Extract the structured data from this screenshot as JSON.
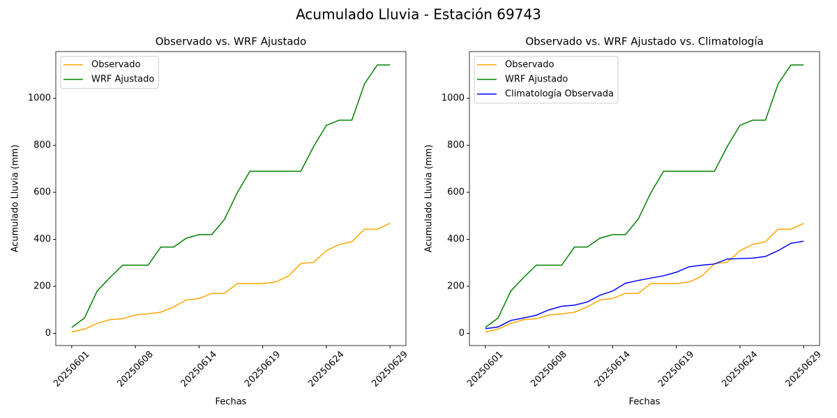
{
  "title": "Acumulado Lluvia - Estación 69743",
  "chart_data": [
    {
      "type": "line",
      "title": "Observado vs. WRF Ajustado",
      "x_label": "Fechas",
      "y_label": "Acumulado Lluvia (mm)",
      "categories": [
        "20250601",
        null,
        null,
        null,
        null,
        "20250608",
        null,
        null,
        null,
        null,
        "20250614",
        null,
        null,
        null,
        null,
        "20250619",
        null,
        null,
        null,
        null,
        "20250624",
        null,
        null,
        null,
        null,
        "20250629"
      ],
      "series": [
        {
          "name": "Observado",
          "color": "orange",
          "values": [
            5,
            18,
            42,
            58,
            62,
            78,
            83,
            90,
            112,
            142,
            148,
            170,
            170,
            212,
            212,
            212,
            218,
            243,
            297,
            302,
            352,
            378,
            390,
            443,
            443,
            468
          ]
        },
        {
          "name": "WRF Ajustado",
          "color": "green",
          "values": [
            25,
            65,
            180,
            237,
            290,
            290,
            290,
            367,
            367,
            405,
            420,
            420,
            485,
            598,
            690,
            690,
            690,
            690,
            690,
            795,
            885,
            907,
            907,
            1062,
            1142,
            1142
          ]
        }
      ],
      "ylim": [
        -52,
        1199
      ],
      "yticks": [
        0,
        200,
        400,
        600,
        800,
        1000
      ],
      "legend": "upper left",
      "grid": false
    },
    {
      "type": "line",
      "title": "Observado vs. WRF Ajustado vs. Climatología",
      "x_label": "Fechas",
      "y_label": "Acumulado Lluvia (mm)",
      "categories": [
        "20250601",
        null,
        null,
        null,
        null,
        "20250608",
        null,
        null,
        null,
        null,
        "20250614",
        null,
        null,
        null,
        null,
        "20250619",
        null,
        null,
        null,
        null,
        "20250624",
        null,
        null,
        null,
        null,
        "20250629"
      ],
      "series": [
        {
          "name": "Observado",
          "color": "orange",
          "values": [
            5,
            18,
            42,
            58,
            62,
            78,
            83,
            90,
            112,
            142,
            148,
            170,
            170,
            212,
            212,
            212,
            218,
            243,
            297,
            302,
            352,
            378,
            390,
            443,
            443,
            468
          ]
        },
        {
          "name": "WRF Ajustado",
          "color": "green",
          "values": [
            25,
            65,
            180,
            237,
            290,
            290,
            290,
            367,
            367,
            405,
            420,
            420,
            485,
            598,
            690,
            690,
            690,
            690,
            690,
            795,
            885,
            907,
            907,
            1062,
            1142,
            1142
          ]
        },
        {
          "name": "Climatología Observada",
          "color": "blue",
          "values": [
            20,
            27,
            55,
            65,
            77,
            100,
            115,
            120,
            133,
            162,
            180,
            213,
            225,
            235,
            245,
            260,
            283,
            290,
            295,
            316,
            318,
            320,
            327,
            352,
            383,
            392
          ]
        }
      ],
      "ylim": [
        -52,
        1199
      ],
      "yticks": [
        0,
        200,
        400,
        600,
        800,
        1000
      ],
      "legend": "upper left",
      "grid": false
    }
  ]
}
